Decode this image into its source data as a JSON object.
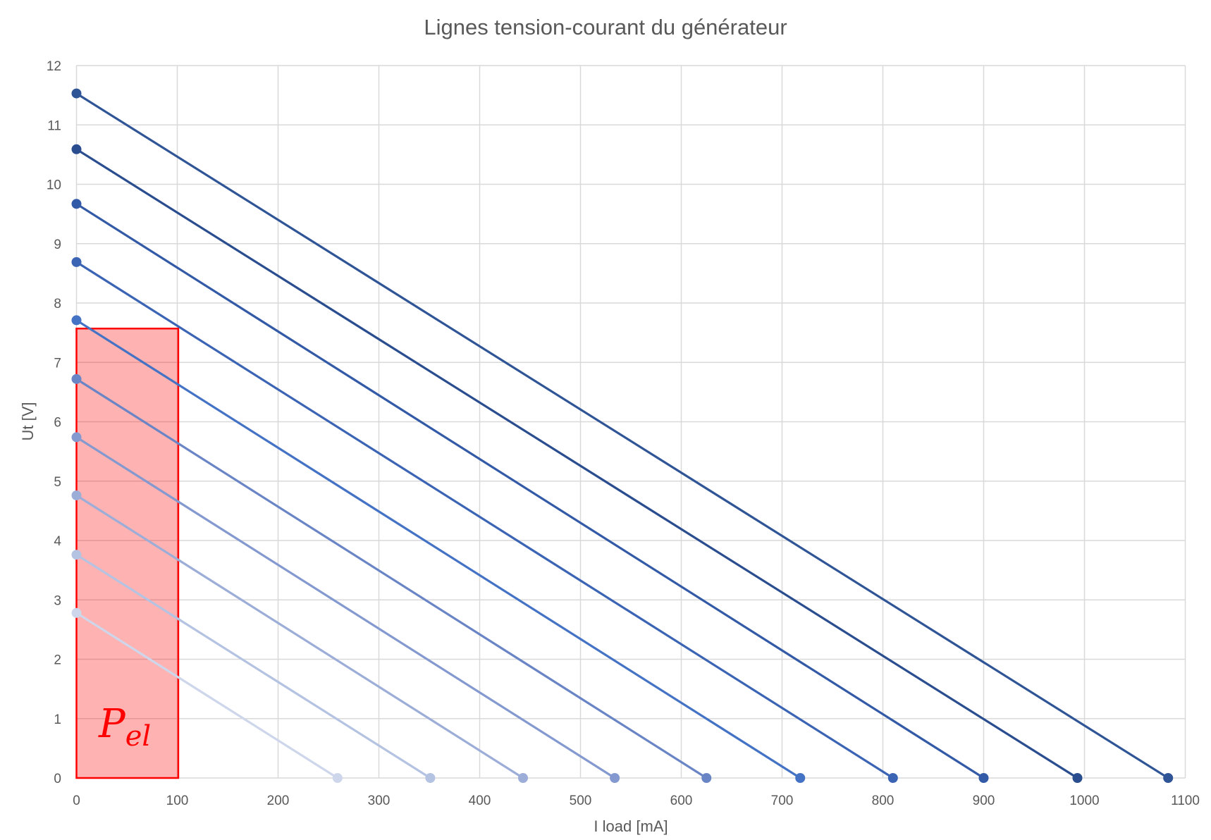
{
  "chart_data": {
    "type": "line",
    "title": "Lignes tension-courant du générateur",
    "xlabel": "I load [mA]",
    "ylabel": "Ut [V]",
    "xlim": [
      0,
      1100
    ],
    "ylim": [
      0,
      12
    ],
    "xticks": [
      "0",
      "100",
      "200",
      "300",
      "400",
      "500",
      "600",
      "700",
      "800",
      "900",
      "1000",
      "1100"
    ],
    "yticks": [
      "0",
      "1",
      "2",
      "3",
      "4",
      "5",
      "6",
      "7",
      "8",
      "9",
      "10",
      "11",
      "12"
    ],
    "grid": true,
    "legend": "none",
    "series": [
      {
        "color": "#cdd6ea",
        "points": [
          [
            0,
            2.78
          ],
          [
            259,
            0
          ]
        ]
      },
      {
        "color": "#b5c3e2",
        "points": [
          [
            0,
            3.76
          ],
          [
            351,
            0
          ]
        ]
      },
      {
        "color": "#9cadd8",
        "points": [
          [
            0,
            4.76
          ],
          [
            443,
            0
          ]
        ]
      },
      {
        "color": "#8399cf",
        "points": [
          [
            0,
            5.74
          ],
          [
            534,
            0
          ]
        ]
      },
      {
        "color": "#6a85c6",
        "points": [
          [
            0,
            6.72
          ],
          [
            625,
            0
          ]
        ]
      },
      {
        "color": "#4472c4",
        "points": [
          [
            0,
            7.71
          ],
          [
            718,
            0
          ]
        ]
      },
      {
        "color": "#3b64b4",
        "points": [
          [
            0,
            8.69
          ],
          [
            810,
            0
          ]
        ]
      },
      {
        "color": "#335aa6",
        "points": [
          [
            0,
            9.67
          ],
          [
            900,
            0
          ]
        ]
      },
      {
        "color": "#2a4d8f",
        "points": [
          [
            0,
            10.59
          ],
          [
            993,
            0
          ]
        ]
      },
      {
        "color": "#2f5597",
        "points": [
          [
            0,
            11.53
          ],
          [
            1083,
            0
          ]
        ]
      }
    ],
    "annotation": {
      "type": "rectangle",
      "x_range": [
        0,
        101
      ],
      "y_range": [
        0,
        7.57
      ],
      "fill": "rgba(255,0,0,0.3)",
      "stroke": "#ff0000",
      "label_main": "P",
      "label_sub": "el"
    }
  }
}
